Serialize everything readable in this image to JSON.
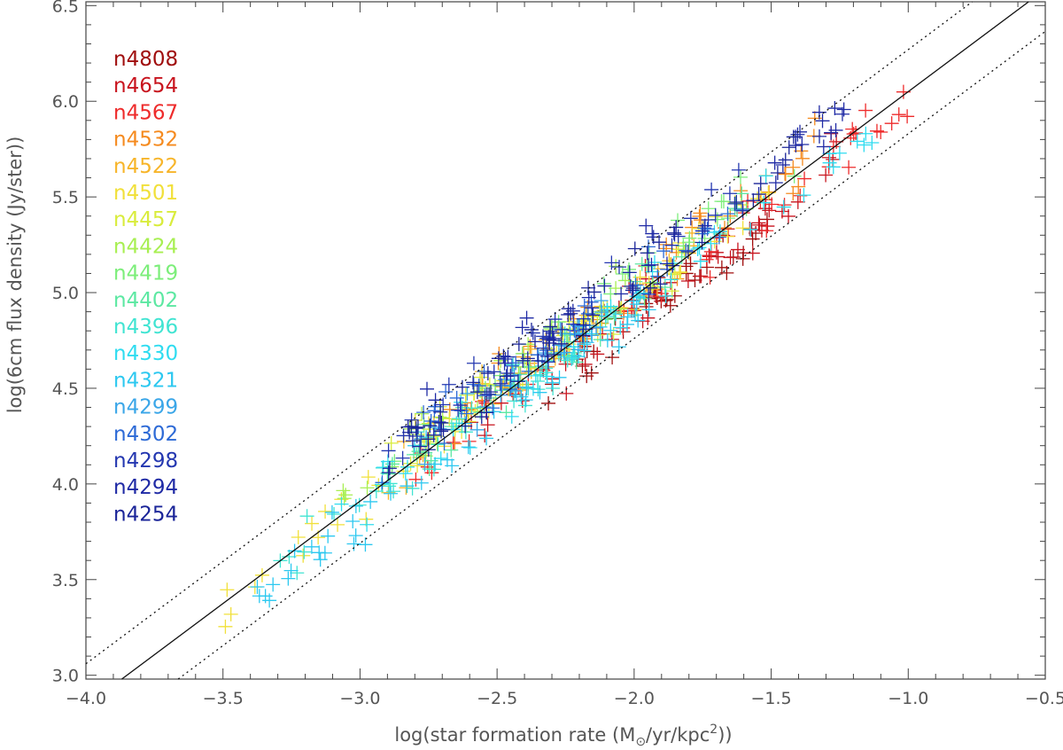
{
  "chart_data": {
    "type": "scatter",
    "title": "",
    "xlabel_prefix": "log(star formation rate (M",
    "xlabel_sun": "⊙",
    "xlabel_mid": "/yr/kpc",
    "xlabel_sup": "2",
    "xlabel_suffix": "))",
    "ylabel": "log(6cm flux density (Jy/ster))",
    "xlim": [
      -4.0,
      -0.5
    ],
    "ylim": [
      2.98,
      6.52
    ],
    "xticks": [
      -4.0,
      -3.5,
      -3.0,
      -2.5,
      -2.0,
      -1.5,
      -1.0,
      -0.5
    ],
    "xtick_labels": [
      "−4.0",
      "−3.5",
      "−3.0",
      "−2.5",
      "−2.0",
      "−1.5",
      "−1.0",
      "−0.5"
    ],
    "yticks": [
      3.0,
      3.5,
      4.0,
      4.5,
      5.0,
      5.5,
      6.0,
      6.5
    ],
    "ytick_labels": [
      "3.0",
      "3.5",
      "4.0",
      "4.5",
      "5.0",
      "5.5",
      "6.0",
      "6.5"
    ],
    "grid": false,
    "legend_position": "top-left",
    "fit_line": {
      "slope": 1.07,
      "intercept": 7.12,
      "style": "solid"
    },
    "scatter_bounds": [
      {
        "slope": 1.07,
        "intercept": 7.34,
        "style": "dotted"
      },
      {
        "slope": 1.07,
        "intercept": 6.9,
        "style": "dotted"
      }
    ],
    "series": [
      {
        "name": "n4808",
        "color": "#a00e0e",
        "x_range": [
          -2.4,
          -1.5
        ],
        "n": 45,
        "offset": -0.12
      },
      {
        "name": "n4654",
        "color": "#c8141e",
        "x_range": [
          -2.6,
          -1.25
        ],
        "n": 55,
        "offset": -0.08
      },
      {
        "name": "n4567",
        "color": "#ee2b2b",
        "x_range": [
          -2.8,
          -1.0
        ],
        "n": 50,
        "offset": -0.05
      },
      {
        "name": "n4532",
        "color": "#f58a1e",
        "x_range": [
          -2.7,
          -1.3
        ],
        "n": 45,
        "offset": 0.08
      },
      {
        "name": "n4522",
        "color": "#f7b52a",
        "x_range": [
          -2.9,
          -1.7
        ],
        "n": 40,
        "offset": 0.05
      },
      {
        "name": "n4501",
        "color": "#f1e03a",
        "x_range": [
          -3.5,
          -1.5
        ],
        "n": 60,
        "offset": 0.02
      },
      {
        "name": "n4457",
        "color": "#d9ec3c",
        "x_range": [
          -2.9,
          -1.8
        ],
        "n": 35,
        "offset": 0.06
      },
      {
        "name": "n4424",
        "color": "#a8ef52",
        "x_range": [
          -3.1,
          -2.0
        ],
        "n": 30,
        "offset": 0.1
      },
      {
        "name": "n4419",
        "color": "#7cee7a",
        "x_range": [
          -2.9,
          -1.4
        ],
        "n": 35,
        "offset": 0.1
      },
      {
        "name": "n4402",
        "color": "#5ce8a2",
        "x_range": [
          -2.9,
          -1.6
        ],
        "n": 35,
        "offset": 0.0
      },
      {
        "name": "n4396",
        "color": "#40e4d2",
        "x_range": [
          -3.3,
          -2.2
        ],
        "n": 40,
        "offset": -0.02
      },
      {
        "name": "n4330",
        "color": "#2fdcf0",
        "x_range": [
          -3.1,
          -1.1
        ],
        "n": 55,
        "offset": -0.05
      },
      {
        "name": "n4321",
        "color": "#2cc8f0",
        "x_range": [
          -3.4,
          -1.9
        ],
        "n": 55,
        "offset": -0.1
      },
      {
        "name": "n4299",
        "color": "#3aa6e8",
        "x_range": [
          -2.8,
          -2.1
        ],
        "n": 30,
        "offset": 0.05
      },
      {
        "name": "n4302",
        "color": "#2d6ad6",
        "x_range": [
          -3.0,
          -1.6
        ],
        "n": 40,
        "offset": 0.1
      },
      {
        "name": "n4298",
        "color": "#2437b0",
        "x_range": [
          -2.9,
          -1.6
        ],
        "n": 45,
        "offset": 0.12
      },
      {
        "name": "n4294",
        "color": "#1f2aa5",
        "x_range": [
          -2.8,
          -1.2
        ],
        "n": 50,
        "offset": 0.15
      },
      {
        "name": "n4254",
        "color": "#1a2498",
        "x_range": [
          -2.9,
          -1.4
        ],
        "n": 60,
        "offset": 0.1
      }
    ]
  }
}
